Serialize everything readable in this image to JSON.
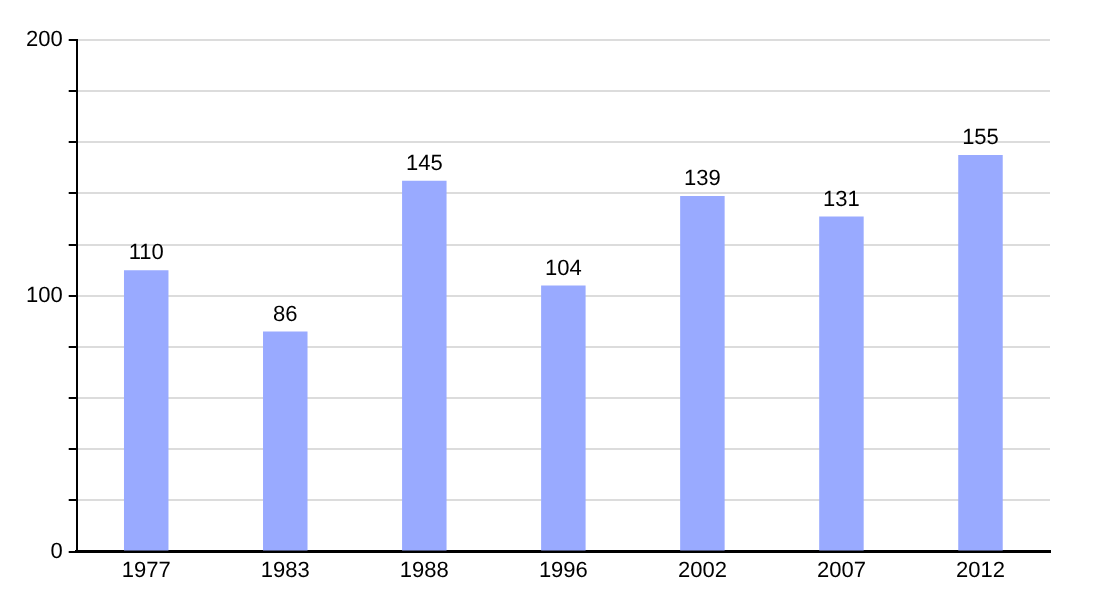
{
  "chart_data": {
    "type": "bar",
    "categories": [
      "1977",
      "1983",
      "1988",
      "1996",
      "2002",
      "2007",
      "2012"
    ],
    "values": [
      110,
      86,
      145,
      104,
      139,
      131,
      155
    ],
    "color": "#99aaff",
    "ylim": [
      0,
      200
    ],
    "yticks": [
      0,
      {
        "value": 20,
        "label": null
      },
      {
        "value": 40,
        "label": null
      },
      {
        "value": 60,
        "label": null
      },
      {
        "value": 80,
        "label": null
      },
      100,
      {
        "value": 120,
        "label": null
      },
      {
        "value": 140,
        "label": null
      },
      {
        "value": 160,
        "label": null
      },
      {
        "value": 180,
        "label": null
      },
      200
    ],
    "grid": "y",
    "data_labels": true
  }
}
